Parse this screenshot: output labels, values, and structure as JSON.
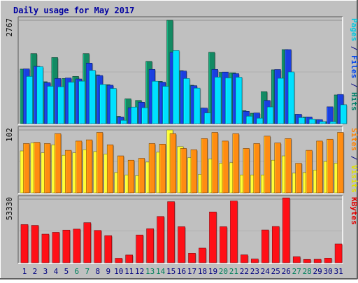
{
  "title": "Daily usage for May 2017",
  "chart_data": [
    {
      "type": "bar",
      "panel": "top",
      "ymax_label": "2767",
      "ylim": [
        0,
        2767
      ],
      "legend": [
        "Pages",
        "Files",
        "Hits"
      ],
      "categories": [
        "1",
        "2",
        "3",
        "4",
        "5",
        "6",
        "7",
        "8",
        "9",
        "10",
        "11",
        "12",
        "13",
        "14",
        "15",
        "16",
        "17",
        "18",
        "19",
        "20",
        "21",
        "22",
        "23",
        "24",
        "25",
        "26",
        "27",
        "28",
        "29",
        "30",
        "31"
      ],
      "series": [
        {
          "name": "Hits",
          "color": "#138a63",
          "values": [
            1460,
            1875,
            1123,
            1770,
            1209,
            1264,
            1875,
            1307,
            1045,
            197,
            664,
            621,
            1667,
            1134,
            2767,
            1420,
            1029,
            418,
            1909,
            1373,
            1362,
            349,
            280,
            858,
            1441,
            1982,
            252,
            180,
            109,
            54,
            768
          ]
        },
        {
          "name": "Files",
          "color": "#1a3fe0",
          "values": [
            1466,
            1535,
            1098,
            1209,
            1223,
            1196,
            1621,
            1289,
            1030,
            180,
            427,
            574,
            1453,
            1111,
            1909,
            1409,
            1017,
            418,
            1453,
            1380,
            1340,
            331,
            287,
            621,
            1449,
            1982,
            252,
            180,
            109,
            451,
            782
          ]
        },
        {
          "name": "Pages",
          "color": "#00e0ff",
          "values": [
            1266,
            1524,
            1002,
            989,
            1111,
            1138,
            1426,
            1049,
            943,
            90,
            445,
            427,
            1136,
            1000,
            1957,
            1209,
            951,
            287,
            1246,
            1225,
            1243,
            201,
            147,
            448,
            1215,
            1384,
            163,
            123,
            55,
            54,
            507
          ]
        }
      ]
    },
    {
      "type": "bar",
      "panel": "middle",
      "ymax_label": "102",
      "ylim": [
        0,
        102
      ],
      "legend": [
        "Sites",
        "Visits"
      ],
      "categories": [
        "1",
        "2",
        "3",
        "4",
        "5",
        "6",
        "7",
        "8",
        "9",
        "10",
        "11",
        "12",
        "13",
        "14",
        "15",
        "16",
        "17",
        "18",
        "19",
        "20",
        "21",
        "22",
        "23",
        "24",
        "25",
        "26",
        "27",
        "28",
        "29",
        "30",
        "31"
      ],
      "series": [
        {
          "name": "Visits",
          "color": "#ffff33",
          "values": [
            68,
            81,
            65,
            78,
            61,
            65,
            70,
            67,
            63,
            33,
            29,
            28,
            50,
            66,
            102,
            75,
            57,
            30,
            55,
            48,
            49,
            29,
            29,
            29,
            53,
            60,
            32,
            33,
            37,
            51,
            48
          ]
        },
        {
          "name": "Sites",
          "color": "#ff8c12",
          "values": [
            80,
            82,
            80,
            96,
            69,
            84,
            86,
            98,
            78,
            60,
            53,
            56,
            80,
            79,
            96,
            72,
            70,
            88,
            98,
            84,
            96,
            72,
            80,
            92,
            81,
            88,
            48,
            69,
            84,
            87,
            98
          ]
        }
      ]
    },
    {
      "type": "bar",
      "panel": "bottom",
      "ymax_label": "53330",
      "ylim": [
        0,
        53330
      ],
      "legend": [
        "KBytes"
      ],
      "categories": [
        "1",
        "2",
        "3",
        "4",
        "5",
        "6",
        "7",
        "8",
        "9",
        "10",
        "11",
        "12",
        "13",
        "14",
        "15",
        "16",
        "17",
        "18",
        "19",
        "20",
        "21",
        "22",
        "23",
        "24",
        "25",
        "26",
        "27",
        "28",
        "29",
        "30",
        "31"
      ],
      "series": [
        {
          "name": "KBytes",
          "color": "#ff0f16",
          "values": [
            32000,
            31300,
            24000,
            25500,
            27400,
            28200,
            33600,
            27100,
            22700,
            3800,
            6500,
            23300,
            28500,
            38800,
            51200,
            30200,
            8000,
            12300,
            42600,
            30200,
            51800,
            6600,
            3100,
            27500,
            30400,
            54400,
            5000,
            2800,
            2900,
            3900,
            15800
          ]
        }
      ]
    }
  ],
  "x_labels": {
    "days": [
      "1",
      "2",
      "3",
      "4",
      "5",
      "6",
      "7",
      "8",
      "9",
      "10",
      "11",
      "12",
      "13",
      "14",
      "15",
      "16",
      "17",
      "18",
      "19",
      "20",
      "21",
      "22",
      "23",
      "24",
      "25",
      "26",
      "27",
      "28",
      "29",
      "30",
      "31"
    ],
    "weekend_days": [
      "6",
      "7",
      "13",
      "14",
      "20",
      "21",
      "27",
      "28"
    ],
    "weekday_color": "#000080",
    "weekend_color": "#00805c"
  },
  "legend_text": {
    "top": [
      {
        "t": "Pages",
        "c": "#00c8e0"
      },
      {
        "t": " / ",
        "c": "#000080"
      },
      {
        "t": "Files",
        "c": "#0044ee"
      },
      {
        "t": " / ",
        "c": "#000080"
      },
      {
        "t": "Hits",
        "c": "#00806a"
      }
    ],
    "middle": [
      {
        "t": "Sites",
        "c": "#ff8000"
      },
      {
        "t": " / ",
        "c": "#000080"
      },
      {
        "t": "Visits",
        "c": "#e0e000"
      }
    ],
    "bottom": [
      {
        "t": "KBytes",
        "c": "#e00000"
      }
    ]
  },
  "colors": {
    "background": "#c0c0c0",
    "plot_background": "#c0c0c0",
    "title": "#0000a0",
    "axis_label": "#000000"
  }
}
